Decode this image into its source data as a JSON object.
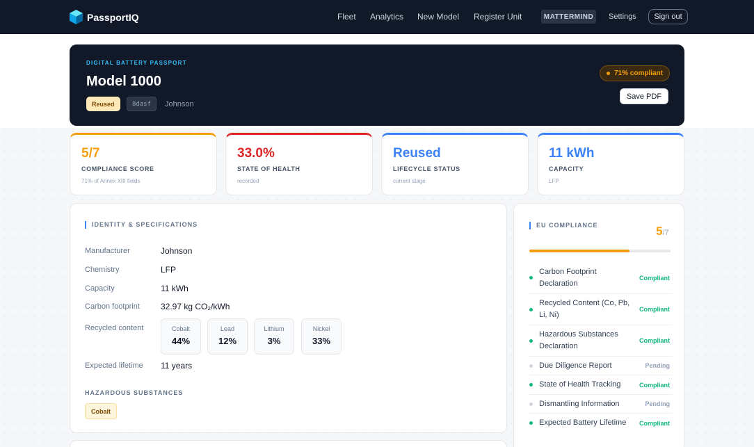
{
  "nav": {
    "brand": "PassportIQ",
    "links": [
      "Fleet",
      "Analytics",
      "New Model",
      "Register Unit"
    ],
    "org": "MATTERMIND",
    "settings": "Settings",
    "sign_out": "Sign out"
  },
  "hero": {
    "eyebrow": "DIGITAL BATTERY PASSPORT",
    "title": "Model 1000",
    "status_tag": "Reused",
    "id_code": "8dasf",
    "owner": "Johnson",
    "compliance_pill": "71% compliant",
    "save_pdf": "Save PDF"
  },
  "stats": [
    {
      "value": "5/7",
      "label": "COMPLIANCE SCORE",
      "sub": "71% of Annex XIII fields",
      "color": "#f59e0b"
    },
    {
      "value": "33.0%",
      "label": "STATE OF HEALTH",
      "sub": "recorded",
      "color": "#dc2626"
    },
    {
      "value": "Reused",
      "label": "LIFECYCLE STATUS",
      "sub": "current stage",
      "color": "#3b82f6"
    },
    {
      "value": "11 kWh",
      "label": "CAPACITY",
      "sub": "LFP",
      "color": "#3b82f6"
    }
  ],
  "identity": {
    "heading": "IDENTITY & SPECIFICATIONS",
    "rows": [
      {
        "label": "Manufacturer",
        "value": "Johnson"
      },
      {
        "label": "Chemistry",
        "value": "LFP"
      },
      {
        "label": "Capacity",
        "value": "11 kWh"
      },
      {
        "label": "Carbon footprint",
        "value": "32.97 kg CO₂/kWh"
      },
      {
        "label": "Recycled content",
        "value": ""
      },
      {
        "label": "Expected lifetime",
        "value": "11 years"
      }
    ],
    "recycled": [
      {
        "name": "Cobalt",
        "value": "44%"
      },
      {
        "name": "Lead",
        "value": "12%"
      },
      {
        "name": "Lithium",
        "value": "3%"
      },
      {
        "name": "Nickel",
        "value": "33%"
      }
    ],
    "hazardous_heading": "HAZARDOUS SUBSTANCES",
    "hazardous": [
      "Cobalt"
    ]
  },
  "eu": {
    "heading": "EU COMPLIANCE",
    "score": "5",
    "score_of": "/7",
    "progress": 0.71,
    "items": [
      {
        "name": "Carbon Footprint Declaration",
        "status": "Compliant"
      },
      {
        "name": "Recycled Content (Co, Pb, Li, Ni)",
        "status": "Compliant"
      },
      {
        "name": "Hazardous Substances Declaration",
        "status": "Compliant"
      },
      {
        "name": "Due Diligence Report",
        "status": "Pending"
      },
      {
        "name": "State of Health Tracking",
        "status": "Compliant"
      },
      {
        "name": "Dismantling Information",
        "status": "Pending"
      },
      {
        "name": "Expected Battery Lifetime",
        "status": "Compliant"
      }
    ],
    "colors": {
      "compliant": "#10b981",
      "pending": "#94a3b8"
    }
  }
}
